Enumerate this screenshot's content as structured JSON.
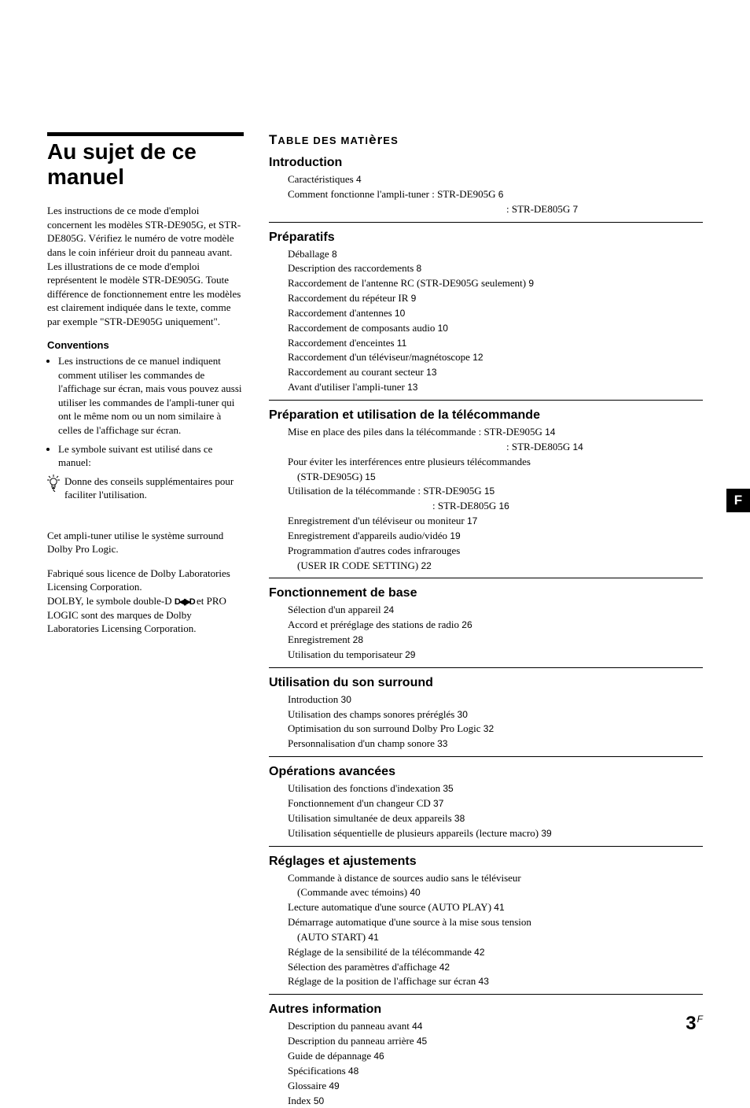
{
  "page": {
    "side_tab": "F",
    "number": "3",
    "number_suffix": "F"
  },
  "left": {
    "title": "Au sujet de ce manuel",
    "intro": "Les instructions de ce mode d'emploi concernent les modèles STR-DE905G, et STR-DE805G. Vérifiez le numéro de votre modèle dans le coin inférieur droit du panneau avant. Les illustrations de ce mode d'emploi représentent le modèle STR-DE905G. Toute différence de fonctionnement entre les modèles est clairement indiquée dans le texte, comme par exemple \"STR-DE905G uniquement\".",
    "conventions_title": "Conventions",
    "bullet1": "Les instructions de ce manuel indiquent comment utiliser les commandes de l'affichage sur écran, mais vous pouvez aussi utiliser les commandes de l'ampli-tuner qui ont le même nom ou un nom similaire à celles  de l'affichage sur écran.",
    "bullet2": "Le symbole suivant est utilisé dans ce manuel:",
    "tip": "Donne des conseils supplémentaires pour faciliter l'utilisation.",
    "credit1": "Cet ampli-tuner utilise le système surround Dolby Pro Logic.",
    "credit2": "Fabriqué sous licence de Dolby Laboratories Licensing Corporation.",
    "credit3_pre": "DOLBY, le symbole double-D ",
    "credit3_post": " et PRO LOGIC sont des marques de Dolby Laboratories Licensing Corporation."
  },
  "toc": {
    "title_pre": "T",
    "title_mid1": "ABLE DES MATI",
    "title_low": "èr",
    "title_mid2": "ES",
    "sections": [
      {
        "title": "Introduction",
        "entries": [
          {
            "t": "Caractéristiques",
            "p": "4"
          },
          {
            "t": "Comment fonctionne l'ampli-tuner : STR-DE905G",
            "p": "6"
          },
          {
            "t": ": STR-DE805G",
            "p": "7",
            "align": "right-colon"
          }
        ]
      },
      {
        "title": "Préparatifs",
        "entries": [
          {
            "t": "Déballage",
            "p": "8"
          },
          {
            "t": "Description des raccordements",
            "p": "8"
          },
          {
            "t": "Raccordement de l'antenne RC (STR-DE905G seulement)",
            "p": "9"
          },
          {
            "t": "Raccordement du répéteur IR",
            "p": "9"
          },
          {
            "t": "Raccordement d'antennes",
            "p": "10"
          },
          {
            "t": "Raccordement de composants audio",
            "p": "10"
          },
          {
            "t": "Raccordement d'enceintes",
            "p": "11"
          },
          {
            "t": "Raccordement d'un téléviseur/magnétoscope",
            "p": "12"
          },
          {
            "t": "Raccordement au courant secteur",
            "p": "13"
          },
          {
            "t": "Avant d'utiliser l'ampli-tuner",
            "p": "13"
          }
        ]
      },
      {
        "title": "Préparation et utilisation de la télécommande",
        "entries": [
          {
            "t": "Mise en place des piles dans la télécommande : STR-DE905G",
            "p": "14"
          },
          {
            "t": ": STR-DE805G",
            "p": "14",
            "align": "right-colon"
          },
          {
            "t": "Pour éviter les interférences entre plusieurs télécommandes",
            "p": ""
          },
          {
            "t": "(STR-DE905G)",
            "p": "15",
            "cont": true
          },
          {
            "t": "Utilisation de la télécommande : STR-DE905G",
            "p": "15"
          },
          {
            "t": ": STR-DE805G",
            "p": "16",
            "align": "right-colon2"
          },
          {
            "t": "Enregistrement d'un téléviseur ou moniteur",
            "p": "17"
          },
          {
            "t": "Enregistrement d'appareils audio/vidéo",
            "p": "19"
          },
          {
            "t": "Programmation d'autres codes infrarouges",
            "p": ""
          },
          {
            "t": "(USER IR CODE SETTING)",
            "p": "22",
            "cont": true
          }
        ]
      },
      {
        "title": "Fonctionnement de base",
        "entries": [
          {
            "t": "Sélection d'un appareil",
            "p": "24"
          },
          {
            "t": "Accord et préréglage des stations de radio",
            "p": "26"
          },
          {
            "t": "Enregistrement",
            "p": "28"
          },
          {
            "t": "Utilisation du temporisateur",
            "p": "29"
          }
        ]
      },
      {
        "title": "Utilisation du son surround",
        "entries": [
          {
            "t": "Introduction",
            "p": "30"
          },
          {
            "t": "Utilisation des champs sonores préréglés",
            "p": "30"
          },
          {
            "t": "Optimisation du son surround Dolby Pro Logic",
            "p": "32"
          },
          {
            "t": "Personnalisation d'un champ sonore",
            "p": "33"
          }
        ]
      },
      {
        "title": "Opérations avancées",
        "entries": [
          {
            "t": "Utilisation des fonctions d'indexation",
            "p": "35"
          },
          {
            "t": "Fonctionnement d'un changeur CD",
            "p": "37"
          },
          {
            "t": "Utilisation simultanée de deux appareils",
            "p": "38"
          },
          {
            "t": "Utilisation séquentielle de plusieurs appareils (lecture macro)",
            "p": "39"
          }
        ]
      },
      {
        "title": "Réglages et ajustements",
        "entries": [
          {
            "t": "Commande à distance de sources audio sans le téléviseur",
            "p": ""
          },
          {
            "t": "(Commande avec témoins)",
            "p": "40",
            "cont": true
          },
          {
            "t": "Lecture automatique d'une source (AUTO PLAY)",
            "p": "41"
          },
          {
            "t": "Démarrage automatique d'une source à la mise sous tension",
            "p": ""
          },
          {
            "t": "(AUTO START)",
            "p": "41",
            "cont": true
          },
          {
            "t": "Réglage de la sensibilité de la télécommande",
            "p": "42"
          },
          {
            "t": "Sélection des paramètres d'affichage",
            "p": "42"
          },
          {
            "t": "Réglage de la position de l'affichage sur écran",
            "p": "43"
          }
        ]
      },
      {
        "title": "Autres information",
        "entries": [
          {
            "t": "Description du panneau avant",
            "p": "44"
          },
          {
            "t": "Description du panneau arrière",
            "p": "45"
          },
          {
            "t": "Guide de dépannage",
            "p": "46"
          },
          {
            "t": "Spécifications",
            "p": "48"
          },
          {
            "t": "Glossaire",
            "p": "49"
          },
          {
            "t": "Index",
            "p": "50"
          }
        ],
        "no_rule": true
      }
    ]
  }
}
